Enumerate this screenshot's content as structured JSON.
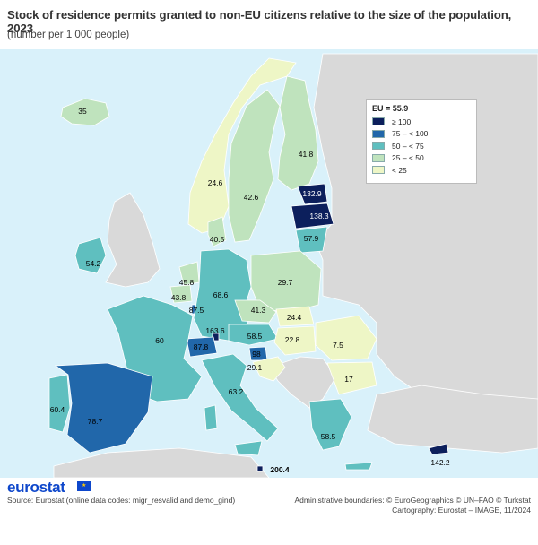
{
  "title": "Stock of residence permits granted to non-EU citizens relative to the size of the population, 2023",
  "subtitle": "(number per 1 000 people)",
  "legend": {
    "title": "EU = 55.9",
    "classes": [
      {
        "label": "≥ 100",
        "color": "#0c1f5c"
      },
      {
        "label": "75 – < 100",
        "color": "#2167aa"
      },
      {
        "label": "50 – < 75",
        "color": "#5fbfbf"
      },
      {
        "label": "25 – < 50",
        "color": "#bfe3bd"
      },
      {
        "label": "< 25",
        "color": "#eef6c6"
      }
    ]
  },
  "map_values": {
    "iceland": "35",
    "norway": "24.6",
    "sweden": "42.6",
    "finland": "41.8",
    "estonia": "132.9",
    "latvia": "138.3",
    "lithuania": "57.9",
    "ireland": "54.2",
    "denmark": "40.5",
    "netherlands": "45.8",
    "belgium": "43.8",
    "luxembourg": "87.5",
    "germany": "68.6",
    "poland": "29.7",
    "czechia": "41.3",
    "slovakia": "24.4",
    "austria": "58.5",
    "hungary": "22.8",
    "liechtenstein": "163.6",
    "switzerland": "87.8",
    "slovenia": "98",
    "croatia": "29.1",
    "france": "60",
    "italy": "63.2",
    "portugal": "60.4",
    "spain": "78.7",
    "romania": "7.5",
    "bulgaria": "17",
    "greece": "58.5",
    "malta": "200.4",
    "cyprus": "142.2"
  },
  "colors": {
    "sea": "#d9f1fa",
    "non_eu_land": "#d9d9d9",
    "border": "#ffffff",
    "brand": "#0e47cb"
  },
  "footer": {
    "logo": "eurostat",
    "source": "Source: Eurostat (online data codes: migr_resvalid and demo_gind)",
    "boundaries": "Administrative boundaries: © EuroGeographics © UN–FAO © Turkstat",
    "cartography": "Cartography: Eurostat – IMAGE, 11/2024"
  }
}
